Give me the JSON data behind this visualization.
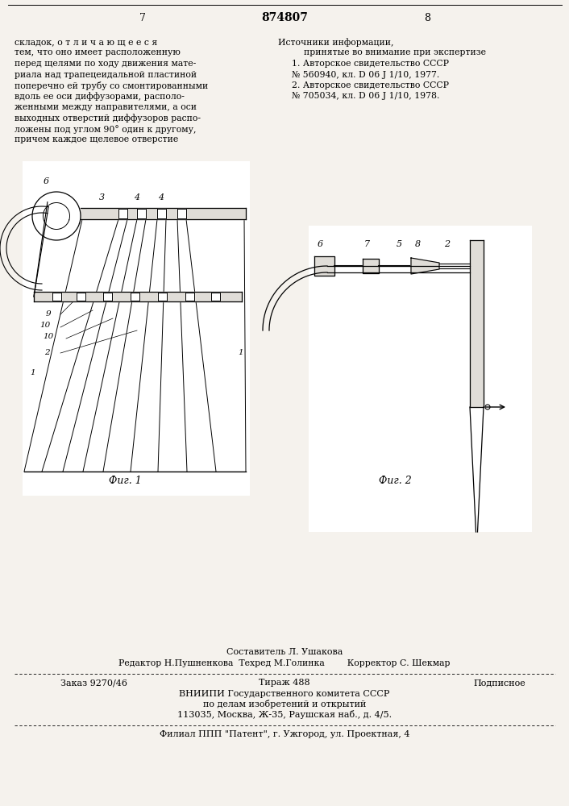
{
  "bg_color": "#f5f2ed",
  "page_number_left": "7",
  "page_number_center": "874807",
  "page_number_right": "8",
  "text_col1": [
    "складок, о т л и ч а ю щ е е с я",
    "тем, что оно имеет расположенную",
    "перед щелями по ходу движения мате-",
    "риала над трапецеидальной пластиной",
    "поперечно ей трубу со смонтированными",
    "вдоль ее оси диффузорами, располо-",
    "женными между направителями, а оси",
    "выходных отверстий диффузоров распо-",
    "ложены под углом 90° один к другому,",
    "причем каждое щелевое отверстие"
  ],
  "text_col2_title": "Источники информации,",
  "text_col2_indent": "принятые во внимание при экспертизе",
  "text_col2": [
    "1. Авторское свидетельство СССР",
    "№ 560940, кл. D 06 J 1/10, 1977.",
    "2. Авторское свидетельство СССР",
    "№ 705034, кл. D 06 J 1/10, 1978."
  ],
  "fig1_caption": "Фиг. 1",
  "fig2_caption": "Фиг. 2",
  "footer_composer": "Составитель Л. Ушакова",
  "footer_editor": "Редактор Н.Пушненкова  Техред М.Голинка        Корректор С. Шекмар",
  "footer_order": "Заказ 9270/46",
  "footer_circulation": "Тираж 488",
  "footer_subscription": "Подписное",
  "footer_vniilpi": "ВНИИПИ Государственного комитета СССР",
  "footer_affairs": "по делам изобретений и открытий",
  "footer_address": "113035, Москва, Ж-35, Раушская наб., д. 4/5.",
  "footer_branch": "Филиал ППП \"Патент\", г. Ужгород, ул. Проектная, 4"
}
